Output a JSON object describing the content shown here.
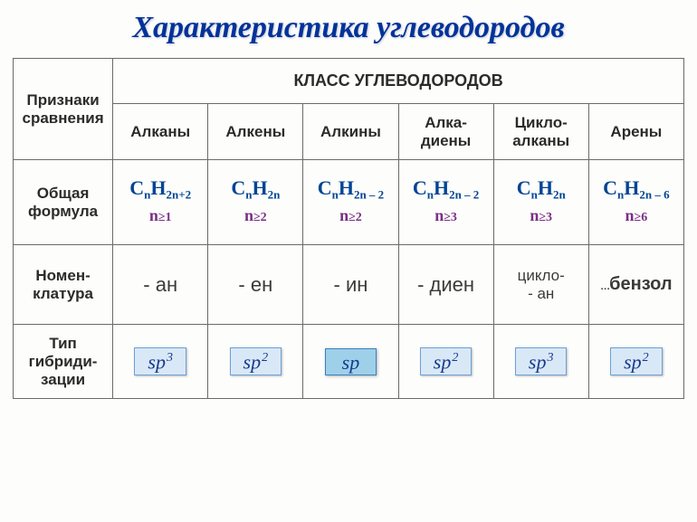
{
  "title": "Характеристика углеводородов",
  "row_headers": {
    "compare": "Признаки сравнения",
    "group": "КЛАСС УГЛЕВОДОРОДОВ",
    "formula_1": "Общая",
    "formula_2": "формула",
    "nomen_1": "Номен-",
    "nomen_2": "клатура",
    "hyb_1": "Тип",
    "hyb_2": "гибриди-",
    "hyb_3": "зации"
  },
  "classes": [
    {
      "name": "Алканы",
      "formula": {
        "c": "C",
        "h": "H",
        "csub": "n",
        "hsub": "2n+2",
        "ncond": "n≥1"
      },
      "nomen": "- ан",
      "hyb": "sp",
      "hyb_sup": "3",
      "hl": false
    },
    {
      "name": "Алкены",
      "formula": {
        "c": "C",
        "h": "H",
        "csub": "n",
        "hsub": "2n",
        "ncond": "n≥2"
      },
      "nomen": "- ен",
      "hyb": "sp",
      "hyb_sup": "2",
      "hl": false
    },
    {
      "name": "Алкины",
      "formula": {
        "c": "C",
        "h": "H",
        "csub": "n",
        "hsub": "2n – 2",
        "ncond": "n≥2"
      },
      "nomen": "- ин",
      "hyb": "sp",
      "hyb_sup": "",
      "hl": true
    },
    {
      "name_1": "Алка-",
      "name_2": "диены",
      "formula": {
        "c": "C",
        "h": "H",
        "csub": "n",
        "hsub": "2n – 2",
        "ncond": "n≥3"
      },
      "nomen": "- диен",
      "hyb": "sp",
      "hyb_sup": "2",
      "hl": false
    },
    {
      "name_1": "Цикло-",
      "name_2": "алканы",
      "bold": true,
      "formula": {
        "c": "C",
        "h": "H",
        "csub": "n",
        "hsub": "2n",
        "ncond": "n≥3"
      },
      "nomen_1": "цикло-",
      "nomen_2": "- ан",
      "hyb": "sp",
      "hyb_sup": "3",
      "hl": false
    },
    {
      "name": "Арены",
      "formula": {
        "c": "C",
        "h": "H",
        "csub": "n",
        "hsub": "2n – 6",
        "ncond": "n≥6"
      },
      "nomen_dots": "…",
      "nomen_b": "бензол",
      "hyb": "sp",
      "hyb_sup": "2",
      "hl": false
    }
  ],
  "colors": {
    "title": "#003399",
    "formula": "#004494",
    "ncond": "#792f85",
    "chip_bg": "#d9e8f7",
    "chip_hl": "#9fd0ea",
    "chip_text": "#163a8a",
    "border": "#6a6a6a"
  }
}
